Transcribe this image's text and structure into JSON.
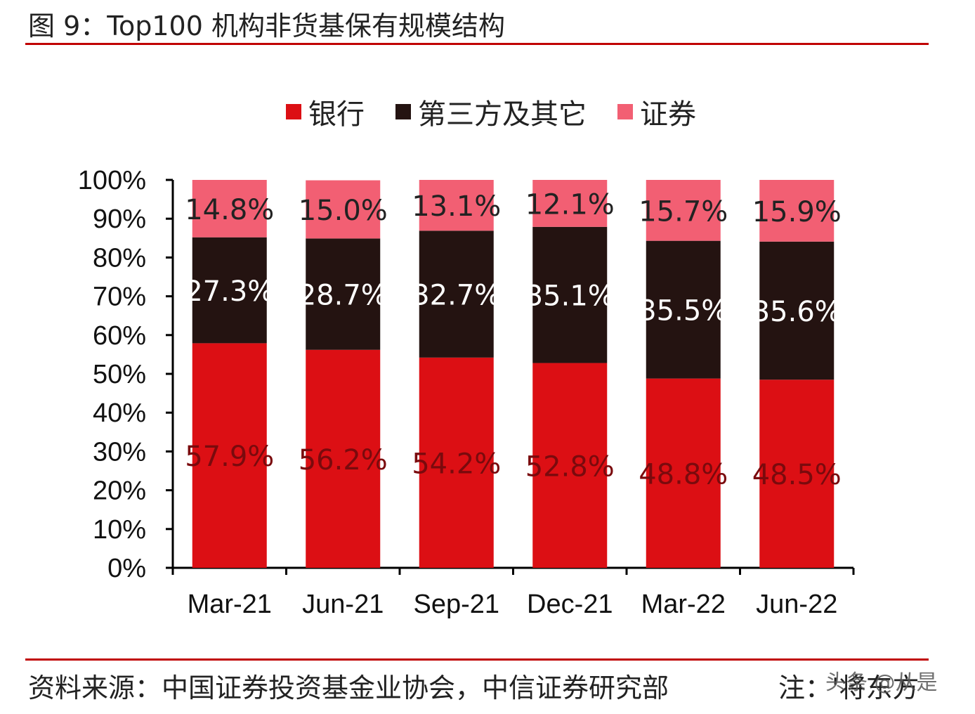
{
  "header": {
    "title": "图 9：Top100 机构非货基保有规模结构"
  },
  "footer": {
    "source": "资料来源：中国证券投资基金业协会，中信证券研究部",
    "note": "注：'将东方",
    "watermark": "头条 @从是"
  },
  "colors": {
    "bank": "#dc0f14",
    "third_party": "#241311",
    "securities": "#f25f73",
    "rule": "#c00000"
  },
  "chart_data": {
    "type": "bar",
    "stacked": true,
    "categories": [
      "Mar-21",
      "Jun-21",
      "Sep-21",
      "Dec-21",
      "Mar-22",
      "Jun-22"
    ],
    "series": [
      {
        "name": "银行",
        "values": [
          57.9,
          56.2,
          54.2,
          52.8,
          48.8,
          48.5
        ],
        "labels": [
          "57.9%",
          "56.2%",
          "54.2%",
          "52.8%",
          "48.8%",
          "48.5%"
        ]
      },
      {
        "name": "第三方及其它",
        "values": [
          27.3,
          28.7,
          32.7,
          35.1,
          35.5,
          35.6
        ],
        "labels": [
          "27.3%",
          "28.7%",
          "32.7%",
          "35.1%",
          "35.5%",
          "35.6%"
        ]
      },
      {
        "name": "证券",
        "values": [
          14.8,
          15.0,
          13.1,
          12.1,
          15.7,
          15.9
        ],
        "labels": [
          "14.8%",
          "15.0%",
          "13.1%",
          "12.1%",
          "15.7%",
          "15.9%"
        ]
      }
    ],
    "ylim": [
      0,
      100
    ],
    "yticks": [
      "0%",
      "10%",
      "20%",
      "30%",
      "40%",
      "50%",
      "60%",
      "70%",
      "80%",
      "90%",
      "100%"
    ],
    "legend_position": "top-center",
    "grid": false
  }
}
